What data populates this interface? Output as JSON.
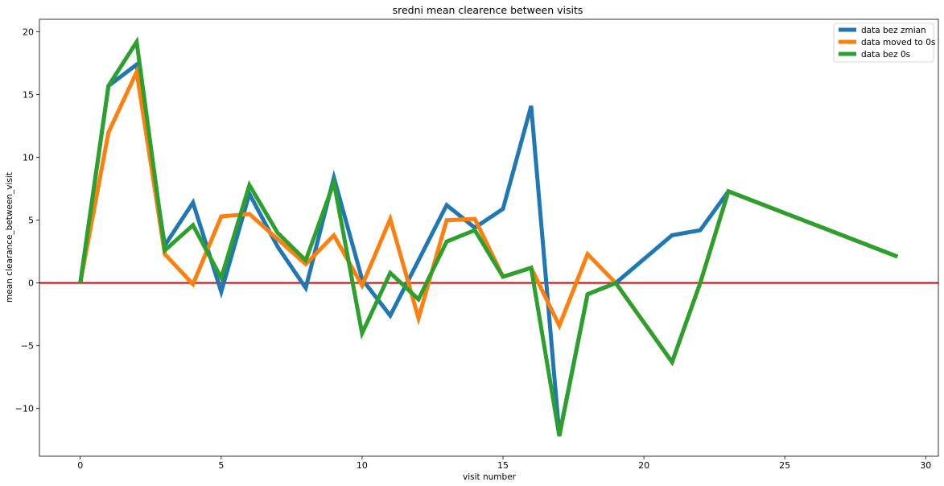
{
  "chart_data": {
    "type": "line",
    "title": "sredni mean clearence between visits",
    "xlabel": "visit number",
    "ylabel": "mean clearance_between_visit",
    "xlim": [
      -1.45,
      30.45
    ],
    "ylim": [
      -13.8,
      21.0
    ],
    "xticks": [
      0,
      5,
      10,
      15,
      20,
      25,
      30
    ],
    "yticks": [
      -10,
      -5,
      0,
      5,
      10,
      15,
      20
    ],
    "xtick_labels": [
      "0",
      "5",
      "10",
      "15",
      "20",
      "25",
      "30"
    ],
    "ytick_labels": [
      "−10",
      "−5",
      "0",
      "5",
      "10",
      "15",
      "20"
    ],
    "legend_position": "upper right",
    "reference_line": {
      "y": 0,
      "color": "#dd0000"
    },
    "series": [
      {
        "name": "data bez zmian",
        "color": "#1f77b4",
        "x": [
          0,
          1,
          2,
          3,
          4,
          5,
          6,
          7,
          8,
          9,
          10,
          11,
          12,
          13,
          14,
          15,
          16,
          17,
          18,
          19,
          21,
          22,
          23,
          29
        ],
        "y": [
          0,
          15.7,
          17.4,
          3.0,
          6.4,
          -0.7,
          7.1,
          2.9,
          -0.4,
          8.4,
          0.3,
          -2.6,
          1.8,
          6.2,
          4.4,
          5.9,
          14.1,
          -12.1,
          -0.9,
          0.0,
          3.8,
          4.2,
          7.3,
          2.1
        ]
      },
      {
        "name": "data moved to 0s",
        "color": "#ff7f0e",
        "x": [
          0,
          1,
          2,
          3,
          4,
          5,
          6,
          7,
          8,
          9,
          10,
          11,
          12,
          13,
          14,
          15,
          16,
          17,
          18,
          19,
          21,
          22,
          23,
          29
        ],
        "y": [
          0,
          12.0,
          16.8,
          2.3,
          -0.1,
          5.3,
          5.5,
          3.5,
          1.5,
          3.8,
          -0.2,
          5.1,
          -2.8,
          5.0,
          5.1,
          0.5,
          1.2,
          -3.4,
          2.3,
          0.0,
          -6.3,
          0.0,
          7.3,
          2.1
        ]
      },
      {
        "name": "data bez 0s",
        "color": "#2ca02c",
        "x": [
          0,
          1,
          2,
          3,
          4,
          5,
          6,
          7,
          8,
          9,
          10,
          11,
          12,
          13,
          14,
          15,
          16,
          17,
          18,
          19,
          21,
          22,
          23,
          29
        ],
        "y": [
          0,
          15.7,
          19.2,
          2.6,
          4.6,
          0.4,
          7.8,
          4.0,
          1.8,
          8.0,
          -4.0,
          0.8,
          -1.3,
          3.3,
          4.2,
          0.5,
          1.2,
          -12.2,
          -0.9,
          0.0,
          -6.3,
          0.0,
          7.3,
          2.1
        ]
      }
    ]
  }
}
